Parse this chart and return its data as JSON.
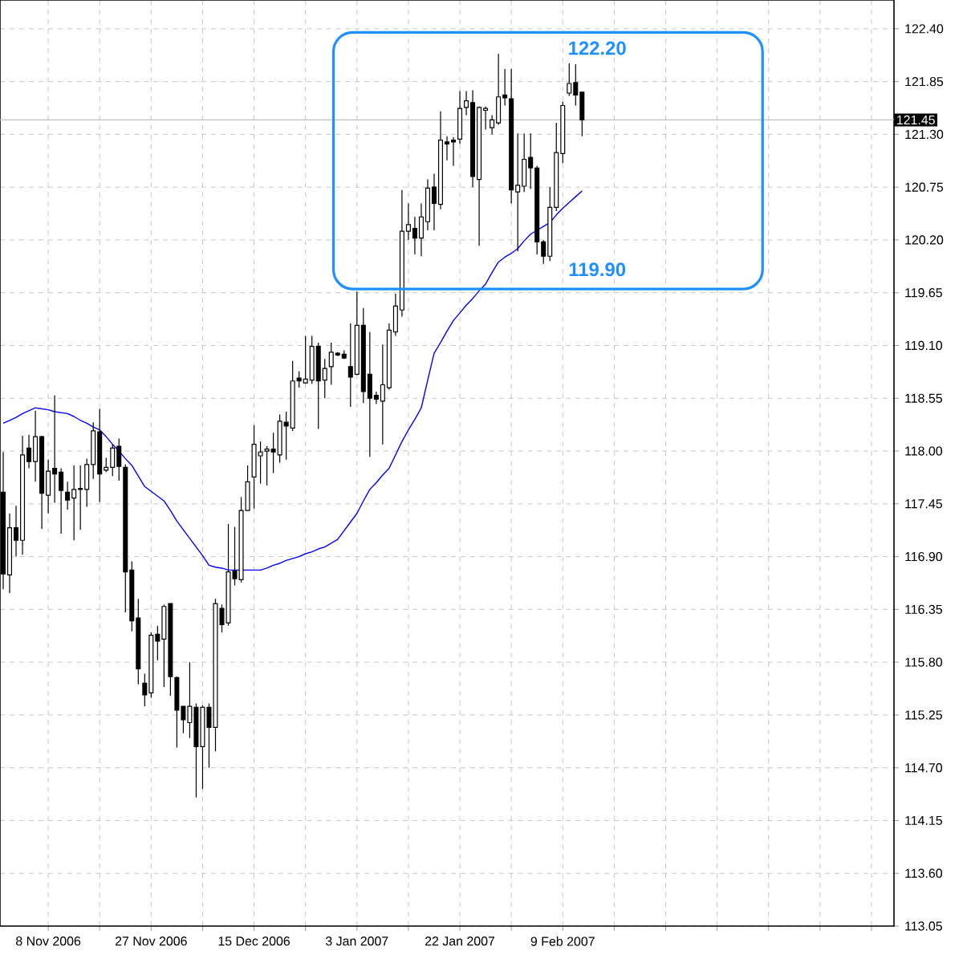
{
  "chart_data": {
    "type": "candlestick",
    "categories": [
      null,
      null,
      null,
      null,
      null,
      null,
      null,
      "8 Nov 2006",
      null,
      null,
      null,
      null,
      null,
      null,
      null,
      null,
      null,
      null,
      null,
      null,
      null,
      null,
      null,
      "27 Nov 2006",
      null,
      null,
      null,
      null,
      null,
      null,
      null,
      null,
      null,
      null,
      null,
      null,
      null,
      null,
      null,
      "15 Dec 2006",
      null,
      null,
      null,
      null,
      null,
      null,
      null,
      null,
      null,
      null,
      null,
      null,
      null,
      null,
      null,
      "3 Jan 2007",
      null,
      null,
      null,
      null,
      null,
      null,
      null,
      null,
      null,
      null,
      null,
      null,
      null,
      null,
      null,
      "22 Jan 2007",
      null,
      null,
      null,
      null,
      null,
      null,
      null,
      null,
      null,
      null,
      null,
      null,
      null,
      null,
      null,
      "9 Feb 2007",
      null,
      null,
      null,
      null,
      null,
      null,
      null,
      null,
      null,
      null,
      null,
      null,
      null,
      null,
      null,
      null,
      null,
      null,
      null,
      null,
      null,
      null,
      null,
      null,
      null,
      null,
      null,
      null,
      null,
      null,
      null,
      null,
      null,
      null,
      null,
      null,
      null,
      null,
      null,
      null,
      null,
      null,
      null,
      null,
      null,
      null,
      null,
      null,
      null,
      null,
      null
    ],
    "ohlc": [
      [
        117.57,
        117.99,
        116.56,
        116.72
      ],
      [
        116.71,
        117.35,
        116.52,
        117.2
      ],
      [
        117.2,
        117.43,
        116.9,
        117.07
      ],
      [
        117.07,
        118.16,
        116.92,
        117.96
      ],
      [
        118.03,
        118.17,
        117.82,
        117.89
      ],
      [
        117.89,
        118.42,
        117.68,
        118.15
      ],
      [
        118.15,
        118.16,
        117.19,
        117.56
      ],
      [
        117.54,
        117.91,
        117.35,
        117.79
      ],
      [
        117.82,
        118.58,
        117.46,
        117.76
      ],
      [
        117.78,
        117.82,
        117.14,
        117.59
      ],
      [
        117.57,
        117.68,
        117.39,
        117.49
      ],
      [
        117.51,
        117.85,
        117.07,
        117.6
      ],
      [
        117.6,
        117.85,
        117.18,
        117.61
      ],
      [
        117.6,
        117.92,
        117.42,
        117.86
      ],
      [
        117.86,
        118.3,
        117.71,
        118.21
      ],
      [
        118.2,
        118.44,
        117.47,
        117.76
      ],
      [
        117.8,
        117.93,
        117.78,
        117.83
      ],
      [
        117.83,
        118.07,
        117.74,
        118.03
      ],
      [
        118.05,
        118.13,
        117.69,
        117.84
      ],
      [
        117.83,
        117.86,
        116.32,
        116.74
      ],
      [
        116.76,
        116.85,
        116.12,
        116.23
      ],
      [
        116.26,
        116.46,
        115.57,
        115.73
      ],
      [
        115.58,
        115.68,
        115.34,
        115.46
      ],
      [
        115.48,
        116.11,
        115.43,
        116.08
      ],
      [
        116.09,
        116.18,
        115.82,
        116.02
      ],
      [
        116.04,
        116.4,
        115.54,
        116.38
      ],
      [
        116.41,
        116.41,
        115.45,
        115.65
      ],
      [
        115.64,
        115.65,
        114.91,
        115.3
      ],
      [
        115.34,
        115.34,
        115.06,
        115.2
      ],
      [
        115.17,
        115.8,
        115.01,
        115.34
      ],
      [
        115.33,
        115.37,
        114.39,
        114.92
      ],
      [
        114.92,
        115.35,
        114.48,
        115.33
      ],
      [
        115.33,
        115.37,
        114.7,
        115.12
      ],
      [
        115.12,
        116.46,
        114.87,
        116.41
      ],
      [
        116.36,
        116.4,
        116.11,
        116.19
      ],
      [
        116.21,
        117.24,
        116.18,
        116.74
      ],
      [
        116.75,
        117.21,
        116.6,
        116.67
      ],
      [
        116.66,
        117.52,
        116.63,
        117.38
      ],
      [
        117.38,
        117.85,
        117.38,
        117.68
      ],
      [
        117.73,
        118.27,
        117.4,
        118.07
      ],
      [
        117.95,
        118.1,
        117.66,
        117.99
      ],
      [
        118.0,
        118.05,
        117.64,
        118.02
      ],
      [
        118.02,
        118.19,
        117.77,
        117.99
      ],
      [
        117.96,
        118.38,
        117.88,
        118.31
      ],
      [
        118.3,
        118.41,
        117.91,
        118.26
      ],
      [
        118.24,
        118.94,
        118.21,
        118.73
      ],
      [
        118.76,
        118.83,
        118.66,
        118.73
      ],
      [
        118.71,
        119.2,
        118.7,
        118.75
      ],
      [
        118.74,
        119.2,
        118.7,
        119.09
      ],
      [
        119.09,
        119.13,
        118.23,
        118.73
      ],
      [
        118.74,
        118.96,
        118.55,
        118.86
      ],
      [
        118.88,
        119.13,
        118.69,
        119.03
      ],
      [
        119.02,
        119.03,
        118.99,
        119.0
      ],
      [
        119.01,
        119.05,
        118.96,
        118.97
      ],
      [
        118.88,
        119.33,
        118.46,
        118.77
      ],
      [
        118.8,
        119.66,
        118.79,
        119.31
      ],
      [
        119.31,
        119.49,
        118.5,
        118.62
      ],
      [
        118.8,
        119.24,
        117.94,
        118.55
      ],
      [
        118.58,
        118.62,
        118.49,
        118.54
      ],
      [
        118.52,
        119.11,
        118.07,
        118.69
      ],
      [
        118.66,
        119.33,
        118.64,
        119.26
      ],
      [
        119.24,
        119.64,
        119.2,
        119.51
      ],
      [
        119.47,
        120.72,
        119.4,
        120.29
      ],
      [
        120.29,
        120.58,
        120.2,
        120.36
      ],
      [
        120.32,
        120.44,
        120.05,
        120.22
      ],
      [
        120.22,
        120.58,
        120.03,
        120.44
      ],
      [
        120.39,
        120.83,
        120.3,
        120.74
      ],
      [
        120.75,
        120.89,
        120.3,
        120.58
      ],
      [
        120.57,
        121.54,
        120.52,
        121.24
      ],
      [
        121.22,
        121.28,
        121.03,
        121.2
      ],
      [
        121.24,
        121.27,
        120.97,
        121.22
      ],
      [
        121.25,
        121.75,
        121.2,
        121.57
      ],
      [
        121.58,
        121.75,
        121.5,
        121.65
      ],
      [
        121.63,
        121.76,
        120.75,
        120.86
      ],
      [
        120.83,
        121.59,
        120.14,
        121.58
      ],
      [
        121.55,
        121.59,
        121.35,
        121.57
      ],
      [
        121.37,
        121.5,
        121.3,
        121.45
      ],
      [
        121.42,
        122.14,
        121.4,
        121.69
      ],
      [
        121.71,
        121.98,
        121.6,
        121.68
      ],
      [
        121.67,
        121.98,
        120.58,
        120.72
      ],
      [
        120.7,
        121.31,
        120.08,
        120.77
      ],
      [
        120.76,
        121.31,
        120.7,
        121.04
      ],
      [
        121.06,
        121.31,
        120.73,
        120.95
      ],
      [
        120.95,
        120.97,
        120.05,
        120.18
      ],
      [
        120.18,
        120.2,
        119.95,
        120.03
      ],
      [
        120.03,
        120.75,
        119.98,
        120.54
      ],
      [
        120.54,
        121.42,
        120.5,
        121.11
      ],
      [
        121.1,
        121.64,
        121.0,
        121.6
      ],
      [
        121.73,
        122.04,
        121.7,
        121.83
      ],
      [
        121.84,
        122.03,
        121.6,
        121.71
      ],
      [
        121.74,
        121.74,
        121.28,
        121.45
      ],
      null,
      null,
      null,
      null,
      null,
      null,
      null,
      null,
      null,
      null,
      null,
      null,
      null,
      null,
      null,
      null,
      null,
      null,
      null,
      null,
      null,
      null,
      null,
      null,
      null,
      null,
      null,
      null,
      null,
      null,
      null,
      null,
      null,
      null,
      null,
      null,
      null,
      null,
      null,
      null,
      null,
      null,
      null,
      null,
      null,
      null,
      null,
      null
    ],
    "series": [
      {
        "type": "line",
        "color": "#0000ff",
        "values": [
          118.29,
          118.32,
          118.35,
          118.39,
          118.42,
          118.45,
          118.44,
          118.43,
          118.41,
          118.4,
          118.39,
          118.36,
          118.32,
          118.29,
          118.25,
          118.22,
          118.15,
          118.07,
          118.0,
          117.92,
          117.85,
          117.74,
          117.63,
          117.58,
          117.53,
          117.48,
          117.38,
          117.27,
          117.18,
          117.09,
          117.0,
          116.91,
          116.81,
          116.79,
          116.78,
          116.76,
          116.76,
          116.76,
          116.76,
          116.76,
          116.76,
          116.78,
          116.81,
          116.83,
          116.86,
          116.88,
          116.9,
          116.93,
          116.95,
          116.98,
          117.0,
          117.04,
          117.08,
          117.17,
          117.26,
          117.35,
          117.48,
          117.6,
          117.67,
          117.75,
          117.82,
          117.96,
          118.1,
          118.22,
          118.33,
          118.45,
          118.74,
          119.02,
          119.13,
          119.25,
          119.36,
          119.44,
          119.52,
          119.59,
          119.67,
          119.74,
          119.86,
          119.97,
          120.02,
          120.06,
          120.11,
          120.19,
          120.26,
          120.3,
          120.34,
          120.38,
          120.46,
          120.53,
          120.59,
          120.65,
          120.71,
          null,
          null,
          null,
          null,
          null,
          null,
          null,
          null,
          null,
          null,
          null,
          null,
          null,
          null,
          null,
          null,
          null,
          null,
          null,
          null,
          null,
          null,
          null,
          null,
          null,
          null,
          null,
          null,
          null,
          null,
          null,
          null,
          null,
          null,
          null,
          null,
          null,
          null,
          null,
          null,
          null,
          null,
          null,
          null,
          null,
          null,
          null,
          null
        ]
      }
    ],
    "ylim": [
      113.05,
      122.7
    ],
    "yticks": [
      113.05,
      {
        "value": 113.6,
        "label": "113.60"
      },
      114.15,
      {
        "value": 114.7,
        "label": "114.70"
      },
      115.25,
      {
        "value": 115.8,
        "label": "115.80"
      },
      116.35,
      {
        "value": 116.9,
        "label": "116.90"
      },
      117.45,
      {
        "value": 118,
        "label": "118.00"
      },
      118.55,
      {
        "value": 119.1,
        "label": "119.10"
      },
      119.65,
      {
        "value": 120.2,
        "label": "120.20"
      },
      120.75,
      {
        "value": 121.3,
        "label": "121.30"
      },
      121.85,
      {
        "value": 122.4,
        "label": "122.40"
      }
    ],
    "grid": true,
    "ref_lines": [
      {
        "axis": "y",
        "value": 121.45,
        "label": "121.45",
        "color": "#c0c0c0"
      }
    ],
    "annotations": [
      "122.20",
      "119.90"
    ]
  }
}
